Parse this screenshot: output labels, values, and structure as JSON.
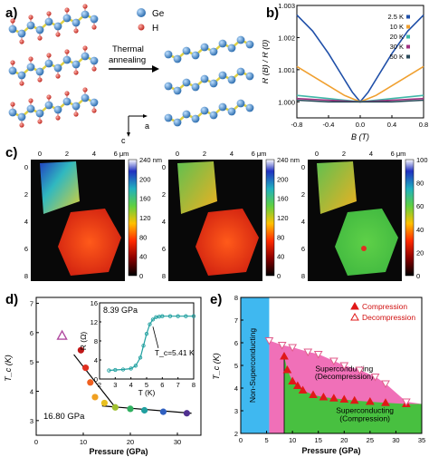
{
  "labels": {
    "a": "a)",
    "b": "b)",
    "c": "c)",
    "d": "d)",
    "e": "e)"
  },
  "panel_a": {
    "legend": [
      {
        "name": "Ge",
        "color": "#4a90c8"
      },
      {
        "name": "H",
        "color": "#e0504a"
      }
    ],
    "arrow_text_1": "Thermal",
    "arrow_text_2": "annealing",
    "axis_a": "a",
    "axis_c": "c"
  },
  "chart_data": [
    {
      "type": "line",
      "panel": "b",
      "xlabel": "B (T)",
      "ylabel": "R (B) / R (0)",
      "xlim": [
        -0.8,
        0.8
      ],
      "ylim": [
        0.9995,
        1.003
      ],
      "xticks": [
        "-0.8",
        "-0.4",
        "0.0",
        "0.4",
        "0.8"
      ],
      "yticks": [
        "1.000",
        "1.001",
        "1.002",
        "1.003"
      ],
      "legend_position": "top-right",
      "series": [
        {
          "name": "2.5 K",
          "color": "#1f4fa8",
          "x": [
            -0.8,
            -0.6,
            -0.4,
            -0.2,
            -0.1,
            0,
            0.1,
            0.2,
            0.4,
            0.6,
            0.8
          ],
          "y": [
            1.0027,
            1.0022,
            1.0015,
            1.0007,
            1.0003,
            1.0,
            1.0003,
            1.0007,
            1.0015,
            1.0022,
            1.0027
          ]
        },
        {
          "name": "10 K",
          "color": "#f0a030",
          "x": [
            -0.8,
            -0.6,
            -0.4,
            -0.2,
            -0.1,
            0,
            0.1,
            0.2,
            0.4,
            0.6,
            0.8
          ],
          "y": [
            1.0011,
            1.0008,
            1.0005,
            1.0002,
            1.0001,
            1.0,
            1.0001,
            1.0002,
            1.0005,
            1.0008,
            1.0011
          ]
        },
        {
          "name": "20 K",
          "color": "#40b8a8",
          "x": [
            -0.8,
            -0.4,
            0,
            0.4,
            0.8
          ],
          "y": [
            1.0002,
            1.0001,
            1.0,
            1.0001,
            1.0002
          ]
        },
        {
          "name": "30 K",
          "color": "#a03080",
          "x": [
            -0.8,
            -0.4,
            0,
            0.4,
            0.8
          ],
          "y": [
            1.0001,
            1.00005,
            1.0,
            1.00005,
            1.0001
          ]
        },
        {
          "name": "50 K",
          "color": "#2a4a5a",
          "x": [
            -0.8,
            -0.4,
            0,
            0.4,
            0.8
          ],
          "y": [
            1.00005,
            1.0,
            1.0,
            1.0,
            1.00005
          ]
        }
      ]
    },
    {
      "type": "scatter",
      "panel": "d",
      "xlabel": "Pressure (GPa)",
      "ylabel": "T_c (K)",
      "xlim": [
        0,
        35
      ],
      "ylim": [
        2.5,
        7.2
      ],
      "xticks": [
        "0",
        "10",
        "20",
        "30"
      ],
      "yticks": [
        "3",
        "4",
        "5",
        "6",
        "7"
      ],
      "annotation": "16.80 GPa",
      "series": [
        {
          "name": "open",
          "x": [
            5.5
          ],
          "y": [
            5.9
          ]
        },
        {
          "name": "points",
          "x": [
            9.5,
            10.5,
            11.5,
            12.5,
            14.5,
            16.8,
            20,
            23,
            27,
            32
          ],
          "y": [
            5.4,
            4.8,
            4.3,
            3.8,
            3.6,
            3.45,
            3.4,
            3.35,
            3.3,
            3.25
          ]
        }
      ],
      "inset": {
        "type": "line",
        "xlabel": "T (K)",
        "ylabel": "R (Ω)",
        "title": "8.39 GPa",
        "annotation": "T_c=5.41 K",
        "xticks": [
          "2",
          "3",
          "4",
          "5",
          "6",
          "7",
          "8"
        ],
        "yticks": [
          "0",
          "4",
          "8",
          "12",
          "16"
        ],
        "xlim": [
          2,
          8
        ],
        "ylim": [
          0,
          16
        ],
        "x": [
          2.6,
          3.0,
          3.5,
          4.0,
          4.3,
          4.6,
          4.8,
          5.0,
          5.2,
          5.4,
          5.6,
          5.8,
          6.0,
          6.5,
          7.0,
          7.5,
          8.0
        ],
        "y": [
          1.8,
          1.9,
          2.0,
          2.2,
          2.8,
          4.5,
          7.0,
          9.5,
          11.5,
          12.5,
          13.0,
          13.1,
          13.2,
          13.2,
          13.2,
          13.2,
          13.2
        ]
      }
    },
    {
      "type": "area",
      "panel": "e",
      "xlabel": "Pressure (GPa)",
      "ylabel": "T_c (K)",
      "xlim": [
        0,
        35
      ],
      "ylim": [
        2,
        8
      ],
      "xticks": [
        "0",
        "5",
        "10",
        "15",
        "20",
        "25",
        "30",
        "35"
      ],
      "yticks": [
        "2",
        "3",
        "4",
        "5",
        "6",
        "7",
        "8"
      ],
      "legend_position": "top-right",
      "regions": [
        "Non-Superconducting",
        "Superconducting (Decompression)",
        "Superconducting (Compression)"
      ],
      "series": [
        {
          "name": "Compression",
          "x": [
            8.4,
            9,
            10,
            11,
            12,
            14,
            16,
            18,
            20,
            22,
            25,
            28,
            32
          ],
          "y": [
            5.4,
            4.8,
            4.3,
            4.1,
            3.9,
            3.7,
            3.6,
            3.55,
            3.5,
            3.45,
            3.4,
            3.35,
            3.3
          ]
        },
        {
          "name": "Decompression",
          "x": [
            5.5,
            8,
            10,
            13,
            15,
            18,
            20,
            23,
            26,
            28,
            32
          ],
          "y": [
            6.1,
            5.9,
            5.8,
            5.6,
            5.5,
            5.2,
            5.0,
            4.8,
            4.5,
            4.2,
            3.4
          ]
        }
      ]
    }
  ],
  "panel_c": {
    "scale_x": [
      "0",
      "2",
      "4",
      "6 μm"
    ],
    "scale_y": [
      "0",
      "2",
      "4",
      "6",
      "8"
    ],
    "colorbar_height": [
      "240 nm",
      "200",
      "160",
      "120",
      "80",
      "40",
      "0"
    ],
    "colorbar_height_2": [
      "240 nm",
      "200",
      "160",
      "120",
      "80",
      "40",
      "0"
    ],
    "colorbar_percent": [
      "100 %",
      "80",
      "60",
      "40",
      "20",
      "0"
    ]
  }
}
